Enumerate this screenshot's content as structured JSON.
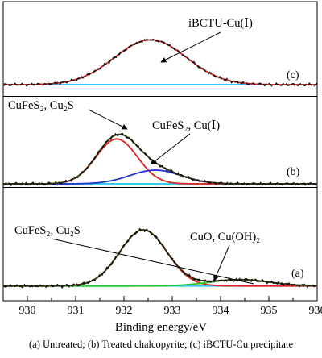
{
  "caption": "(a) Untreated; (b) Treated chalcopyrite; (c) iBCTU-Cu precipitate",
  "chart_data": {
    "type": "line",
    "xlabel": "Binding energy/eV",
    "xlim": [
      929.5,
      936
    ],
    "ylim": [
      0,
      1
    ],
    "x_ticks": [
      "930",
      "931",
      "932",
      "933",
      "934",
      "935",
      "936"
    ],
    "grid": false,
    "colors": {
      "measured": "#111111",
      "fit_envelope": "#3c3c0a",
      "peak_red": "#e0231f",
      "peak_blue": "#2233cc",
      "peak_green": "#22cc22",
      "background": "#33ccee"
    },
    "panels": [
      {
        "id": "a",
        "label": "(a)",
        "baseline": 0.02,
        "components": [
          {
            "center": 932.4,
            "fwhm": 1.15,
            "height": 0.6,
            "color": "peak_red"
          },
          {
            "center": 934.4,
            "fwhm": 1.45,
            "height": 0.068,
            "color": "peak_green"
          }
        ],
        "annotations": [
          {
            "text": "CuFeS₂, Cu₂S",
            "peak": 932.4
          },
          {
            "text": "CuO, Cu(OH)₂",
            "peak": 934.4
          }
        ]
      },
      {
        "id": "b",
        "label": "(b)",
        "baseline": 0.01,
        "components": [
          {
            "center": 931.85,
            "fwhm": 1.0,
            "height": 0.55,
            "color": "peak_red"
          },
          {
            "center": 932.65,
            "fwhm": 1.25,
            "height": 0.168,
            "color": "peak_blue"
          }
        ],
        "annotations": [
          {
            "text": "CuFeS₂, Cu₂S",
            "peak": 931.85
          },
          {
            "text": "CuFeS₂, Cu(Ⅰ)",
            "peak": 932.65
          }
        ]
      },
      {
        "id": "c",
        "label": "(c)",
        "baseline": 0.01,
        "components": [
          {
            "center": 932.55,
            "fwhm": 1.75,
            "height": 0.58,
            "color": "peak_red"
          }
        ],
        "annotations": [
          {
            "text": "iBCTU-Cu(Ⅰ)",
            "peak": 932.55
          }
        ]
      }
    ]
  }
}
